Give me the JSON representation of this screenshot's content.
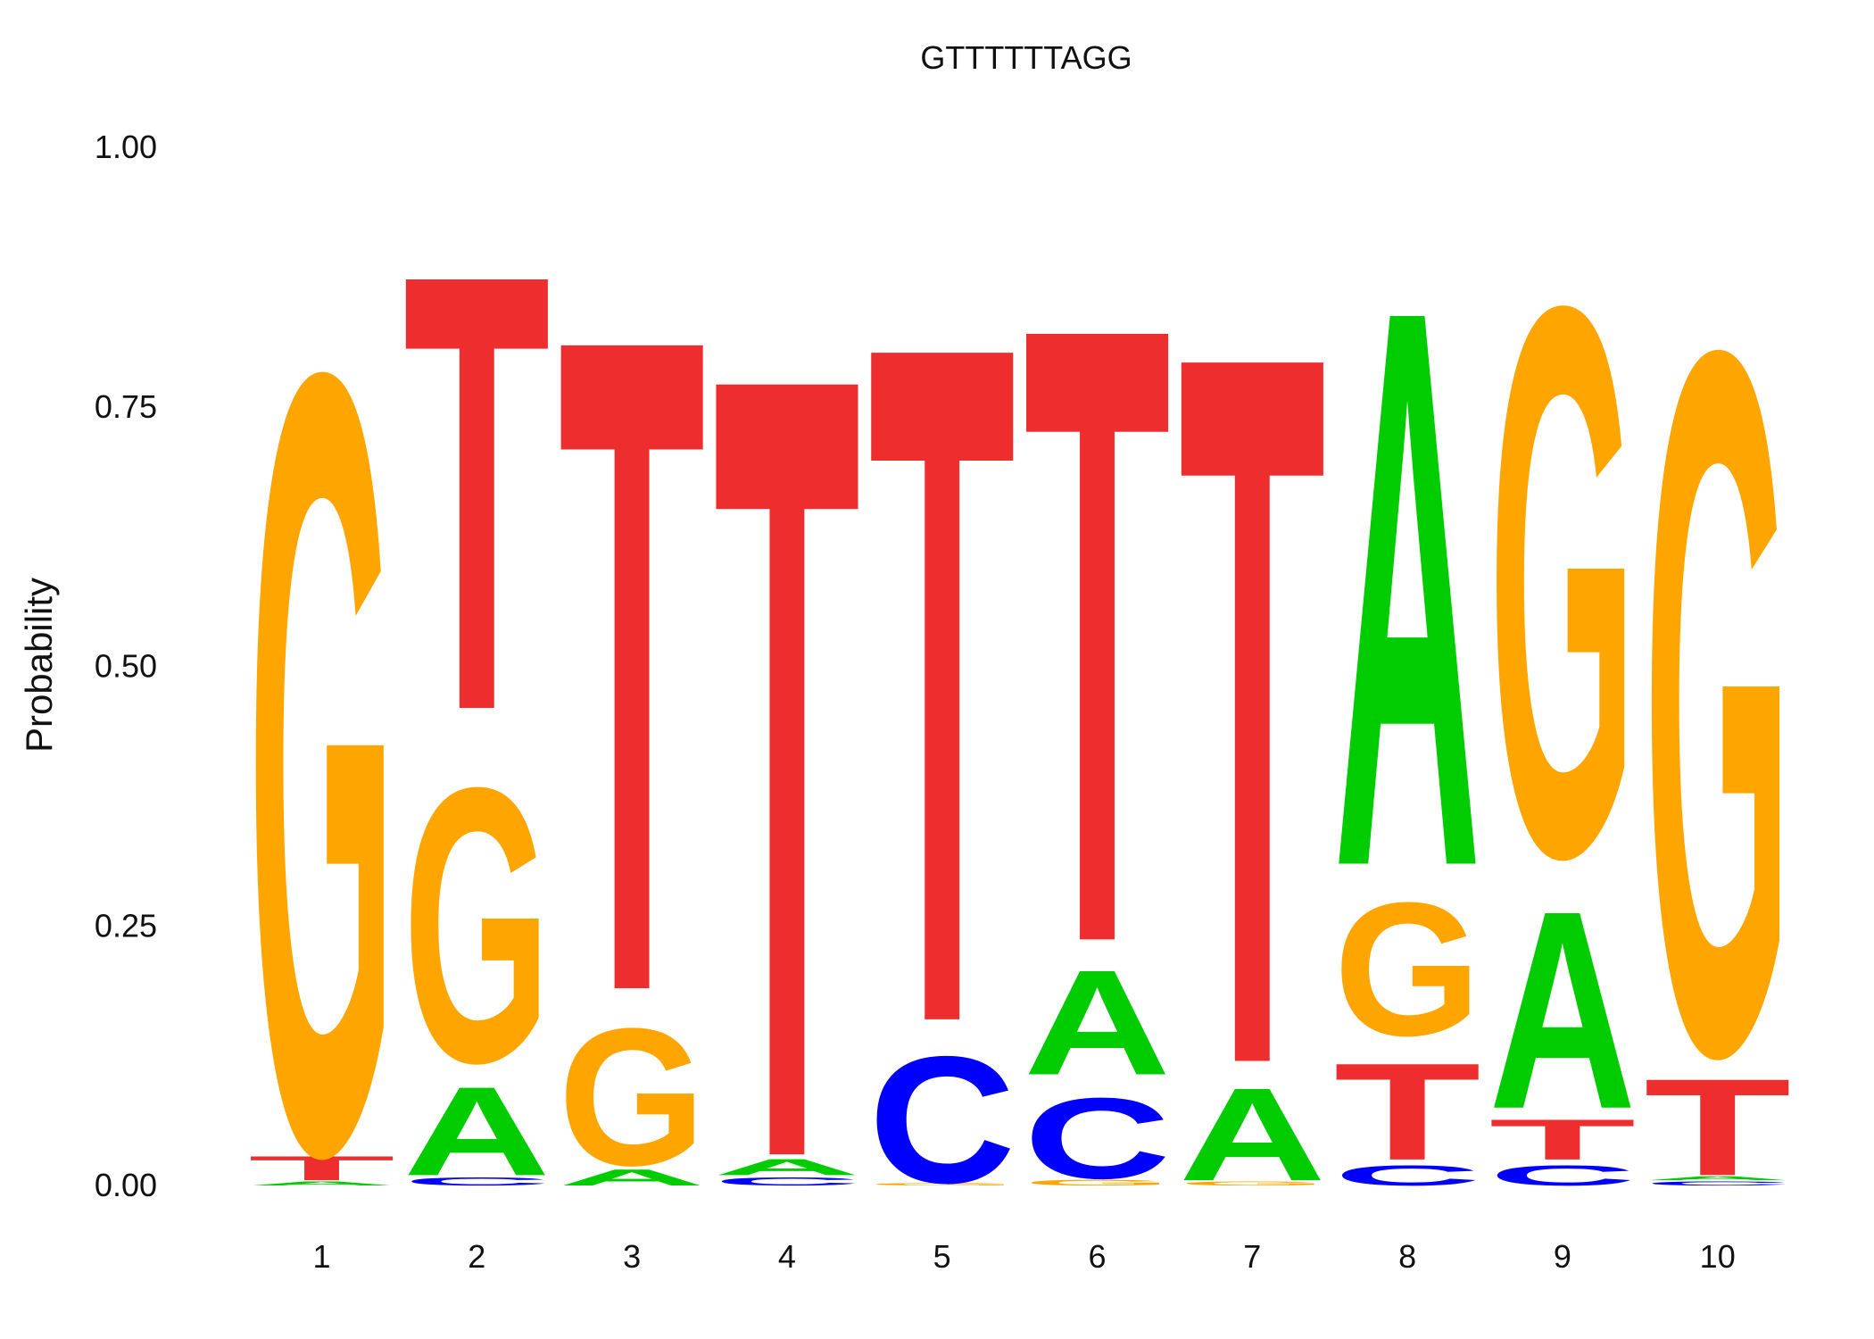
{
  "chart_data": {
    "type": "sequence-logo",
    "title": "GTTTTTTAGG",
    "xlabel": "",
    "ylabel": "Probability",
    "ylim": [
      0,
      1
    ],
    "y_ticks": [
      "0.00",
      "0.25",
      "0.50",
      "0.75",
      "1.00"
    ],
    "positions": [
      "1",
      "2",
      "3",
      "4",
      "5",
      "6",
      "7",
      "8",
      "9",
      "10"
    ],
    "colors": {
      "A": "#00cc00",
      "C": "#0000ff",
      "G": "#ffa500",
      "T": "#ee2e2e"
    },
    "grid": false,
    "stacks": [
      [
        {
          "letter": "A",
          "p": 0.005
        },
        {
          "letter": "T",
          "p": 0.03
        },
        {
          "letter": "G",
          "p": 0.965
        }
      ],
      [
        {
          "letter": "C",
          "p": 0.01
        },
        {
          "letter": "A",
          "p": 0.11
        },
        {
          "letter": "G",
          "p": 0.34
        },
        {
          "letter": "T",
          "p": 0.54
        }
      ],
      [
        {
          "letter": "A",
          "p": 0.02
        },
        {
          "letter": "G",
          "p": 0.17
        },
        {
          "letter": "T",
          "p": 0.81
        }
      ],
      [
        {
          "letter": "C",
          "p": 0.01
        },
        {
          "letter": "A",
          "p": 0.02
        },
        {
          "letter": "T",
          "p": 0.97
        }
      ],
      [
        {
          "letter": "G",
          "p": 0.003
        },
        {
          "letter": "C",
          "p": 0.157
        },
        {
          "letter": "T",
          "p": 0.84
        }
      ],
      [
        {
          "letter": "G",
          "p": 0.007
        },
        {
          "letter": "C",
          "p": 0.1
        },
        {
          "letter": "A",
          "p": 0.13
        },
        {
          "letter": "T",
          "p": 0.763
        }
      ],
      [
        {
          "letter": "G",
          "p": 0.005
        },
        {
          "letter": "A",
          "p": 0.115
        },
        {
          "letter": "T",
          "p": 0.88
        }
      ],
      [
        {
          "letter": "C",
          "p": 0.025
        },
        {
          "letter": "T",
          "p": 0.12
        },
        {
          "letter": "G",
          "p": 0.165
        },
        {
          "letter": "A",
          "p": 0.69
        }
      ],
      [
        {
          "letter": "C",
          "p": 0.025
        },
        {
          "letter": "T",
          "p": 0.05
        },
        {
          "letter": "A",
          "p": 0.245
        },
        {
          "letter": "G",
          "p": 0.68
        }
      ],
      [
        {
          "letter": "C",
          "p": 0.005
        },
        {
          "letter": "A",
          "p": 0.005
        },
        {
          "letter": "T",
          "p": 0.12
        },
        {
          "letter": "G",
          "p": 0.87
        }
      ]
    ]
  }
}
